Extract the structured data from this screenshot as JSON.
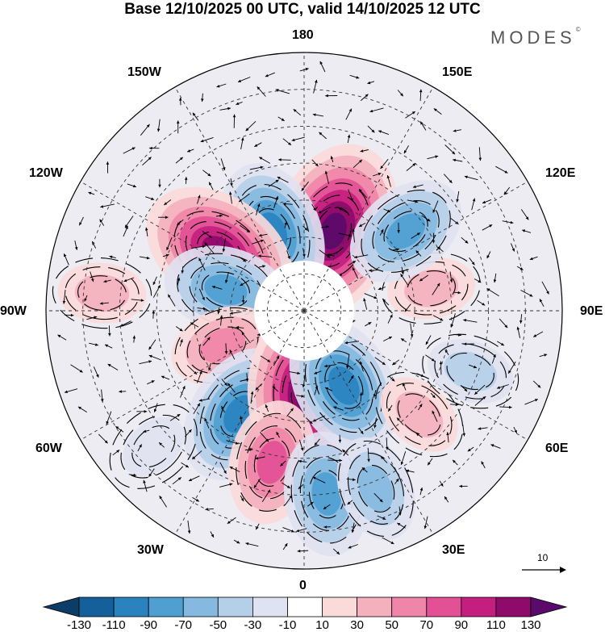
{
  "title": "Base 12/10/2025 00 UTC, valid 14/10/2025 12 UTC",
  "brand": {
    "name": "MODES",
    "mark": "©"
  },
  "longitude_labels": {
    "lon_180": "180",
    "lon_150e": "150E",
    "lon_120e": "120E",
    "lon_90e": "90E",
    "lon_60e": "60E",
    "lon_30e": "30E",
    "lon_0": "0",
    "lon_30w": "30W",
    "lon_60w": "60W",
    "lon_90w": "90W",
    "lon_120w": "120W",
    "lon_150w": "150W"
  },
  "wind_reference": {
    "value": "10"
  },
  "colorbar": {
    "ticks": [
      "-130",
      "-110",
      "-90",
      "-70",
      "-50",
      "-30",
      "-10",
      "10",
      "30",
      "50",
      "70",
      "90",
      "110",
      "130"
    ],
    "colors": [
      "#0b3d66",
      "#15609a",
      "#2a82bf",
      "#4f9fd2",
      "#85b9e0",
      "#b6cfe9",
      "#dfe2f1",
      "#ffffff",
      "#fbdada",
      "#f4b1bd",
      "#ef85a8",
      "#e25095",
      "#c41f7e",
      "#8e0a6b",
      "#5a0a6a"
    ]
  },
  "anomalies": [
    {
      "lon": 160,
      "lat": 67,
      "value": 130
    },
    {
      "lon": -158,
      "lat": 67,
      "value": -95
    },
    {
      "lon": -125,
      "lat": 62,
      "value": 125
    },
    {
      "lon": -105,
      "lat": 68,
      "value": -85
    },
    {
      "lon": -67,
      "lat": 66,
      "value": 55
    },
    {
      "lon": -32,
      "lat": 57,
      "value": -95
    },
    {
      "lon": 3,
      "lat": 67,
      "value": 135
    },
    {
      "lon": -12,
      "lat": 48,
      "value": 70
    },
    {
      "lon": 28,
      "lat": 67,
      "value": -90
    },
    {
      "lon": 7,
      "lat": 40,
      "value": -85
    },
    {
      "lon": 22,
      "lat": 38,
      "value": -60
    },
    {
      "lon": 48,
      "lat": 48,
      "value": 45
    },
    {
      "lon": 70,
      "lat": 42,
      "value": -40
    },
    {
      "lon": 100,
      "lat": 55,
      "value": 40
    },
    {
      "lon": 128,
      "lat": 55,
      "value": -70
    },
    {
      "lon": -95,
      "lat": 35,
      "value": 35
    },
    {
      "lon": -48,
      "lat": 35,
      "value": -28
    }
  ]
}
